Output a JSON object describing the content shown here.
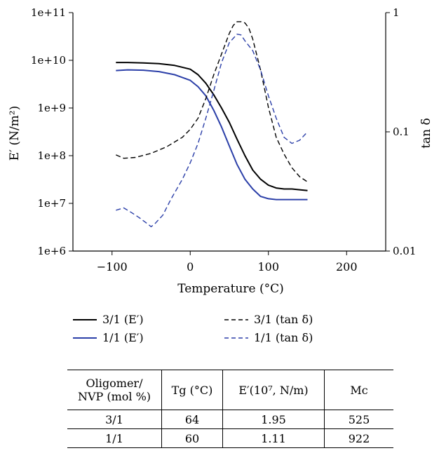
{
  "chart_data": {
    "type": "line",
    "xlabel": "Temperature (°C)",
    "ylabel_left": "E′ (N/m²)",
    "ylabel_right": "tan δ",
    "x_ticks": [
      "−100",
      "0",
      "100",
      "200"
    ],
    "x_tick_values": [
      -100,
      0,
      100,
      200
    ],
    "xlim": [
      -150,
      250
    ],
    "left_axis": {
      "scale": "log",
      "ylim": [
        1000000,
        100000000000
      ],
      "tick_labels": [
        "1e+6",
        "1e+7",
        "1e+8",
        "1e+9",
        "1e+10",
        "1e+11"
      ]
    },
    "right_axis": {
      "scale": "log",
      "ylim": [
        0.01,
        1
      ],
      "tick_labels": [
        "0.01",
        "0.1",
        "1"
      ],
      "tick_values": [
        0.01,
        0.1,
        1
      ]
    },
    "colors": {
      "ratio_3_1": "#000000",
      "ratio_1_1": "#2b3fa8"
    },
    "series": [
      {
        "name": "3/1 (E′)",
        "axis": "left",
        "style": "solid",
        "color": "#000000",
        "x": [
          -95,
          -80,
          -60,
          -40,
          -20,
          0,
          10,
          20,
          30,
          40,
          50,
          60,
          70,
          80,
          90,
          100,
          110,
          120,
          130,
          150
        ],
        "y": [
          9000000000,
          9000000000,
          8800000000,
          8500000000,
          7800000000,
          6500000000,
          5000000000,
          3300000000,
          1900000000,
          1000000000,
          500000000,
          220000000,
          100000000,
          50000000,
          32000000,
          24000000,
          21000000,
          20000000,
          20000000,
          18500000
        ]
      },
      {
        "name": "1/1 (E′)",
        "axis": "left",
        "style": "solid",
        "color": "#2b3fa8",
        "x": [
          -95,
          -80,
          -60,
          -40,
          -20,
          0,
          10,
          20,
          30,
          40,
          50,
          60,
          70,
          80,
          90,
          100,
          110,
          120,
          150
        ],
        "y": [
          6100000000,
          6300000000,
          6200000000,
          5800000000,
          5000000000,
          3800000000,
          2800000000,
          1800000000,
          900000000,
          400000000,
          160000000,
          65000000,
          32000000,
          20000000,
          14000000,
          12500000,
          12000000,
          12000000,
          12000000
        ]
      },
      {
        "name": "3/1 (tan δ)",
        "axis": "right",
        "style": "dashed",
        "color": "#000000",
        "x": [
          -95,
          -85,
          -70,
          -50,
          -30,
          -10,
          0,
          10,
          20,
          30,
          40,
          50,
          55,
          60,
          65,
          70,
          75,
          80,
          90,
          100,
          110,
          120,
          130,
          140,
          150
        ],
        "y": [
          0.064,
          0.06,
          0.061,
          0.066,
          0.075,
          0.09,
          0.105,
          0.13,
          0.19,
          0.3,
          0.45,
          0.67,
          0.78,
          0.84,
          0.84,
          0.82,
          0.74,
          0.6,
          0.33,
          0.16,
          0.09,
          0.065,
          0.05,
          0.042,
          0.038
        ]
      },
      {
        "name": "1/1 (tan δ)",
        "axis": "right",
        "style": "dashed",
        "color": "#2b3fa8",
        "x": [
          -95,
          -85,
          -75,
          -65,
          -55,
          -50,
          -45,
          -35,
          -25,
          -10,
          0,
          10,
          20,
          30,
          40,
          50,
          60,
          65,
          70,
          80,
          90,
          100,
          110,
          120,
          130,
          140,
          150
        ],
        "y": [
          0.022,
          0.023,
          0.021,
          0.019,
          0.017,
          0.016,
          0.017,
          0.02,
          0.027,
          0.04,
          0.055,
          0.08,
          0.13,
          0.22,
          0.38,
          0.56,
          0.66,
          0.65,
          0.58,
          0.48,
          0.33,
          0.2,
          0.13,
          0.09,
          0.08,
          0.085,
          0.1
        ]
      }
    ]
  },
  "legend": [
    {
      "label": "3/1 (E′)",
      "style": "solid",
      "color": "#000000"
    },
    {
      "label": "1/1 (E′)",
      "style": "solid",
      "color": "#2b3fa8"
    },
    {
      "label": "3/1 (tan δ)",
      "style": "dashed",
      "color": "#000000"
    },
    {
      "label": "1/1 (tan δ)",
      "style": "dashed",
      "color": "#2b3fa8"
    }
  ],
  "table": {
    "headers": {
      "h1_line1": "Oligomer/",
      "h1_line2": "NVP (mol %)",
      "h2": "Tg (°C)",
      "h3": "E′(10⁷, N/m)",
      "h4": "Mc"
    },
    "rows": [
      {
        "ratio": "3/1",
        "tg": "64",
        "e": "1.95",
        "mc": "525"
      },
      {
        "ratio": "1/1",
        "tg": "60",
        "e": "1.11",
        "mc": "922"
      }
    ]
  }
}
